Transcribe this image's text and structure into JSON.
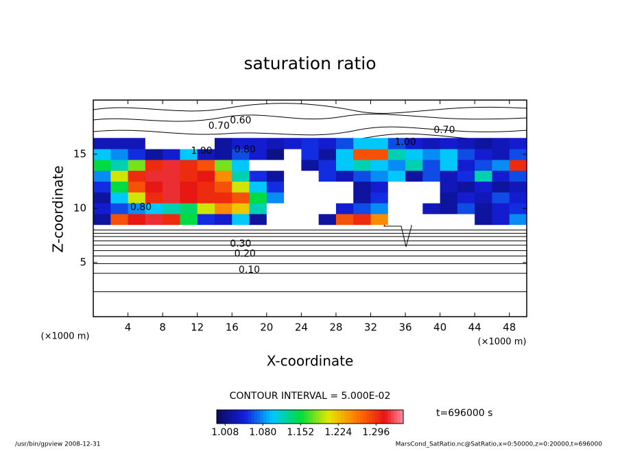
{
  "chart_data": {
    "type": "contour",
    "title": "saturation ratio",
    "x_label": "X-coordinate",
    "y_label": "Z-coordinate",
    "x_unit": "(×1000 m)",
    "y_unit": "(×1000 m)",
    "xlim": [
      0,
      50
    ],
    "ylim": [
      0,
      20
    ],
    "xticks": [
      4,
      8,
      12,
      16,
      20,
      24,
      28,
      32,
      36,
      40,
      44,
      48
    ],
    "yticks": [
      5,
      10,
      15
    ],
    "x": [
      1,
      3,
      5,
      7,
      9,
      11,
      13,
      15,
      17,
      19,
      21,
      23,
      25,
      27,
      29,
      31,
      33,
      35,
      37,
      39,
      41,
      43,
      45,
      47,
      49
    ],
    "z": [
      9,
      10,
      11,
      12,
      13,
      14,
      15,
      16
    ],
    "values": [
      [
        1.02,
        1.28,
        1.31,
        1.32,
        1.3,
        1.15,
        1.05,
        1.04,
        1.1,
        1.02,
        0.95,
        0.95,
        0.95,
        1.02,
        1.28,
        1.3,
        1.25,
        0.95,
        0.95,
        0.95,
        0.95,
        0.95,
        1.02,
        1.04,
        1.08
      ],
      [
        1.04,
        1.06,
        1.08,
        1.1,
        1.12,
        1.14,
        1.2,
        1.25,
        1.22,
        1.12,
        0.95,
        0.95,
        0.95,
        0.95,
        1.04,
        1.06,
        1.08,
        0.95,
        0.95,
        1.03,
        1.02,
        1.06,
        1.02,
        1.04,
        1.05
      ],
      [
        1.02,
        1.1,
        1.2,
        1.3,
        1.32,
        1.31,
        1.3,
        1.3,
        1.28,
        1.15,
        1.08,
        0.95,
        0.95,
        0.95,
        0.95,
        1.02,
        1.05,
        0.95,
        0.95,
        0.95,
        1.02,
        1.04,
        1.03,
        1.06,
        1.04
      ],
      [
        1.05,
        1.15,
        1.28,
        1.31,
        1.32,
        1.31,
        1.3,
        1.28,
        1.2,
        1.1,
        1.05,
        0.98,
        0.95,
        0.95,
        0.95,
        1.02,
        1.04,
        0.95,
        0.95,
        0.95,
        1.03,
        1.02,
        1.04,
        1.02,
        1.03
      ],
      [
        1.08,
        1.2,
        1.3,
        1.32,
        1.32,
        1.3,
        1.31,
        1.25,
        1.12,
        1.05,
        1.02,
        0.98,
        0.98,
        1.05,
        1.03,
        1.06,
        1.08,
        1.1,
        1.02,
        1.06,
        1.03,
        1.05,
        1.12,
        1.04,
        1.06
      ],
      [
        1.15,
        1.12,
        1.18,
        1.3,
        1.32,
        1.3,
        1.28,
        1.18,
        1.1,
        0.95,
        0.95,
        0.95,
        1.02,
        1.05,
        1.1,
        1.12,
        1.1,
        1.08,
        1.12,
        1.06,
        1.1,
        1.04,
        1.06,
        1.08,
        1.3
      ],
      [
        1.1,
        1.08,
        1.05,
        1.02,
        1.04,
        1.1,
        1.03,
        1.02,
        1.06,
        1.04,
        1.01,
        0.98,
        1.05,
        1.02,
        1.1,
        1.28,
        1.28,
        1.12,
        1.1,
        1.08,
        1.1,
        1.06,
        1.04,
        1.03,
        1.06
      ],
      [
        1.03,
        1.03,
        1.03,
        0.98,
        0.98,
        0.98,
        0.98,
        1.02,
        1.04,
        1.04,
        1.03,
        1.04,
        1.05,
        1.04,
        1.06,
        1.1,
        1.1,
        1.06,
        1.04,
        1.03,
        1.04,
        1.03,
        1.02,
        1.03,
        1.04
      ]
    ],
    "contour_lines_z": [
      2.3,
      4.0,
      4.9,
      5.6,
      6.1,
      6.6,
      7.0,
      7.4,
      7.7,
      8.0
    ],
    "annotations": [
      {
        "label": "0.10",
        "x": 18,
        "z": 4.3
      },
      {
        "label": "0.20",
        "x": 17.5,
        "z": 5.8
      },
      {
        "label": "0.30",
        "x": 17,
        "z": 6.7
      },
      {
        "label": "0.70",
        "x": 14.5,
        "z": 17.6
      },
      {
        "label": "0.60",
        "x": 17,
        "z": 18.1
      },
      {
        "label": "0.70",
        "x": 40.5,
        "z": 17.2
      },
      {
        "label": "1.00",
        "x": 12.5,
        "z": 15.3
      },
      {
        "label": "0.80",
        "x": 17.5,
        "z": 15.4
      },
      {
        "label": "1.00",
        "x": 36,
        "z": 16.1
      },
      {
        "label": "0.80",
        "x": 5.5,
        "z": 10.1
      }
    ],
    "contour_interval": "CONTOUR INTERVAL = 5.000E-02",
    "clim": [
      0.992,
      1.348
    ],
    "cbar_ticks": [
      {
        "value": 1.008,
        "label": "1.008"
      },
      {
        "value": 1.08,
        "label": "1.080"
      },
      {
        "value": 1.152,
        "label": "1.152"
      },
      {
        "value": 1.224,
        "label": "1.224"
      },
      {
        "value": 1.296,
        "label": "1.296"
      }
    ],
    "time_label": "t=696000 s",
    "footer_left": "/usr/bin/gpview   2008-12-31",
    "footer_right": "MarsCond_SatRatio.nc@SatRatio,x=0:50000,z=0:20000,t=696000"
  }
}
